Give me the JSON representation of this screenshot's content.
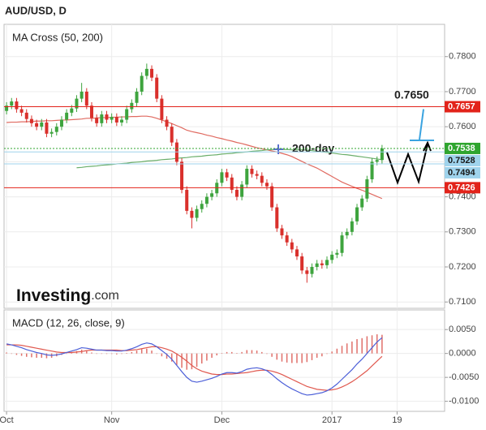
{
  "header": {
    "title": "AUD/USD, D"
  },
  "watermark": {
    "brand": "Investing",
    "domain": ".com"
  },
  "chart_data": [
    {
      "type": "candlestick",
      "title": "MA Cross (50, 200)",
      "up_color": "#3ea43e",
      "down_color": "#d9302c",
      "ylim": [
        0.7082,
        0.7892
      ],
      "yticks": [
        {
          "value": 0.71,
          "label": "0.7100"
        },
        {
          "value": 0.72,
          "label": "0.7200"
        },
        {
          "value": 0.73,
          "label": "0.7300"
        },
        {
          "value": 0.74,
          "label": "0.7400"
        },
        {
          "value": 0.75,
          "label": "0.7500"
        },
        {
          "value": 0.76,
          "label": "0.7600"
        },
        {
          "value": 0.77,
          "label": "0.7700"
        },
        {
          "value": 0.78,
          "label": "0.7800"
        }
      ],
      "grid": true,
      "open": [
        0.7645,
        0.766,
        0.7672,
        0.765,
        0.764,
        0.7622,
        0.761,
        0.76,
        0.7612,
        0.758,
        0.7585,
        0.76,
        0.762,
        0.764,
        0.7652,
        0.768,
        0.77,
        0.766,
        0.7625,
        0.761,
        0.7635,
        0.762,
        0.7628,
        0.7612,
        0.762,
        0.765,
        0.7668,
        0.77,
        0.7745,
        0.7765,
        0.774,
        0.768,
        0.762,
        0.76,
        0.7555,
        0.75,
        0.742,
        0.736,
        0.734,
        0.7365,
        0.738,
        0.74,
        0.741,
        0.744,
        0.747,
        0.7455,
        0.742,
        0.74,
        0.7435,
        0.748,
        0.7465,
        0.746,
        0.744,
        0.743,
        0.737,
        0.731,
        0.729,
        0.727,
        0.725,
        0.723,
        0.719,
        0.718,
        0.72,
        0.721,
        0.7205,
        0.722,
        0.7235,
        0.724,
        0.729,
        0.73,
        0.733,
        0.737,
        0.7395,
        0.745,
        0.75,
        0.7505,
        null,
        null,
        null,
        null,
        null,
        null,
        null,
        null,
        null,
        null,
        null,
        null
      ],
      "high": [
        0.767,
        0.7682,
        0.7682,
        0.766,
        0.765,
        0.7632,
        0.762,
        0.7622,
        0.7622,
        0.7595,
        0.761,
        0.763,
        0.765,
        0.7662,
        0.769,
        0.7725,
        0.771,
        0.767,
        0.7635,
        0.7645,
        0.7645,
        0.7638,
        0.7638,
        0.763,
        0.766,
        0.7678,
        0.771,
        0.7755,
        0.778,
        0.7775,
        0.775,
        0.769,
        0.763,
        0.761,
        0.7565,
        0.751,
        0.743,
        0.737,
        0.7375,
        0.739,
        0.741,
        0.742,
        0.745,
        0.748,
        0.748,
        0.7465,
        0.743,
        0.7445,
        0.749,
        0.749,
        0.7475,
        0.747,
        0.745,
        0.744,
        0.738,
        0.732,
        0.73,
        0.728,
        0.726,
        0.724,
        0.72,
        0.721,
        0.722,
        0.722,
        0.723,
        0.7245,
        0.725,
        0.73,
        0.731,
        0.734,
        0.738,
        0.7405,
        0.746,
        0.751,
        0.7515,
        0.7548,
        null,
        null,
        null,
        null,
        null,
        null,
        null,
        null,
        null,
        null,
        null,
        null
      ],
      "low": [
        0.7635,
        0.765,
        0.764,
        0.763,
        0.7612,
        0.76,
        0.759,
        0.759,
        0.757,
        0.757,
        0.7575,
        0.759,
        0.761,
        0.763,
        0.7642,
        0.767,
        0.765,
        0.7615,
        0.76,
        0.76,
        0.761,
        0.761,
        0.7602,
        0.7602,
        0.761,
        0.764,
        0.7658,
        0.769,
        0.7735,
        0.773,
        0.767,
        0.761,
        0.759,
        0.7545,
        0.749,
        0.741,
        0.735,
        0.731,
        0.733,
        0.7355,
        0.737,
        0.739,
        0.74,
        0.743,
        0.7445,
        0.741,
        0.739,
        0.739,
        0.7425,
        0.7455,
        0.745,
        0.743,
        0.742,
        0.736,
        0.73,
        0.728,
        0.726,
        0.724,
        0.722,
        0.718,
        0.7155,
        0.717,
        0.719,
        0.7195,
        0.7195,
        0.721,
        0.7225,
        0.723,
        0.728,
        0.729,
        0.732,
        0.736,
        0.7385,
        0.744,
        0.749,
        0.7495,
        null,
        null,
        null,
        null,
        null,
        null,
        null,
        null,
        null,
        null,
        null,
        null
      ],
      "close": [
        0.766,
        0.7672,
        0.765,
        0.764,
        0.7622,
        0.761,
        0.76,
        0.7612,
        0.758,
        0.7585,
        0.76,
        0.762,
        0.764,
        0.7652,
        0.768,
        0.77,
        0.766,
        0.7625,
        0.761,
        0.7635,
        0.762,
        0.7628,
        0.7612,
        0.762,
        0.765,
        0.7668,
        0.77,
        0.7745,
        0.7765,
        0.774,
        0.768,
        0.762,
        0.76,
        0.7555,
        0.75,
        0.742,
        0.736,
        0.734,
        0.7365,
        0.738,
        0.74,
        0.741,
        0.744,
        0.747,
        0.7455,
        0.742,
        0.74,
        0.7435,
        0.748,
        0.7465,
        0.746,
        0.744,
        0.743,
        0.737,
        0.731,
        0.729,
        0.727,
        0.725,
        0.723,
        0.719,
        0.718,
        0.72,
        0.721,
        0.7205,
        0.722,
        0.7235,
        0.724,
        0.729,
        0.73,
        0.733,
        0.737,
        0.7395,
        0.745,
        0.75,
        0.7505,
        0.7538,
        null,
        null,
        null,
        null,
        null,
        null,
        null,
        null,
        null,
        null,
        null,
        null
      ],
      "overlays": [
        {
          "color": "#e06a60",
          "values": [
            0.7612,
            0.7613,
            0.7613,
            0.7614,
            0.7614,
            0.7615,
            0.7616,
            0.7616,
            0.7617,
            0.7617,
            0.7618,
            0.7619,
            0.7619,
            0.762,
            0.7621,
            0.7622,
            0.7624,
            0.7624,
            0.7625,
            0.7626,
            0.7626,
            0.7627,
            0.7627,
            0.7628,
            0.7628,
            0.7629,
            0.7629,
            0.763,
            0.763,
            0.7628,
            0.7624,
            0.7619,
            0.7614,
            0.7609,
            0.7603,
            0.7597,
            0.759,
            0.7586,
            0.7583,
            0.758,
            0.7576,
            0.7573,
            0.7569,
            0.7566,
            0.7562,
            0.7559,
            0.7555,
            0.7552,
            0.7548,
            0.7544,
            0.754,
            0.7537,
            0.7534,
            0.7531,
            0.7528,
            0.7524,
            0.752,
            0.7515,
            0.7508,
            0.7501,
            0.7494,
            0.7488,
            0.7482,
            0.7474,
            0.7466,
            0.7458,
            0.745,
            0.7442,
            0.7436,
            0.743,
            0.7424,
            0.7419,
            0.7413,
            0.7407,
            0.7401,
            0.7395,
            null,
            null,
            null,
            null,
            null,
            null,
            null,
            null,
            null,
            null,
            null,
            null
          ]
        },
        {
          "color": "#6aae6a",
          "values": [
            null,
            null,
            null,
            null,
            null,
            null,
            null,
            null,
            null,
            null,
            null,
            null,
            null,
            null,
            0.7483,
            0.7484,
            0.7486,
            0.7487,
            0.7488,
            0.749,
            0.7491,
            0.7492,
            0.7494,
            0.7495,
            0.7496,
            0.7498,
            0.7499,
            0.75,
            0.7502,
            0.7503,
            0.7504,
            0.7506,
            0.7507,
            0.7508,
            0.751,
            0.7511,
            0.7512,
            0.7514,
            0.7515,
            0.7516,
            0.7518,
            0.7519,
            0.752,
            0.7522,
            0.7523,
            0.7524,
            0.7526,
            0.7527,
            0.7528,
            0.753,
            0.7531,
            0.7532,
            0.7534,
            0.7535,
            0.7535,
            0.7535,
            0.7535,
            0.7534,
            0.7534,
            0.7534,
            0.7533,
            0.7532,
            0.753,
            0.7528,
            0.7527,
            0.7525,
            0.7523,
            0.7521,
            0.752,
            0.7518,
            0.7516,
            0.7514,
            0.7512,
            0.751,
            0.7508,
            0.7506,
            null,
            null,
            null,
            null,
            null,
            null,
            null,
            null,
            null,
            null,
            null,
            null
          ]
        }
      ],
      "price_lines": [
        {
          "value": 0.7657,
          "color": "#e2231a",
          "text_color": "#ffffff",
          "style": "solid"
        },
        {
          "value": 0.7538,
          "color": "#2fa52f",
          "text_color": "#ffffff",
          "style": "dotted"
        },
        {
          "value": 0.7528,
          "color": "#9fd3ec",
          "text_color": "#1a1a1a",
          "style": "solid"
        },
        {
          "value": 0.7494,
          "color": "#9fd3ec",
          "text_color": "#1a1a1a",
          "style": "solid"
        },
        {
          "value": 0.7426,
          "color": "#e2231a",
          "text_color": "#ffffff",
          "style": "solid"
        }
      ],
      "target_level": {
        "value": 0.765,
        "label": "0.7650"
      },
      "ma200_note": "200-day"
    },
    {
      "type": "macd",
      "title": "MACD (12, 26, close, 9)",
      "categories": [
        "Oct",
        null,
        null,
        null,
        null,
        null,
        null,
        null,
        null,
        null,
        null,
        null,
        null,
        null,
        null,
        null,
        null,
        null,
        null,
        null,
        null,
        "Nov",
        null,
        null,
        null,
        null,
        null,
        null,
        null,
        null,
        null,
        null,
        null,
        null,
        null,
        null,
        null,
        null,
        null,
        null,
        null,
        null,
        null,
        "Dec",
        null,
        null,
        null,
        null,
        null,
        null,
        null,
        null,
        null,
        null,
        null,
        null,
        null,
        null,
        null,
        null,
        null,
        null,
        null,
        null,
        null,
        "2017",
        null,
        null,
        null,
        null,
        null,
        null,
        null,
        null,
        null,
        null,
        null,
        null,
        "19",
        null,
        null,
        null,
        null,
        null,
        null,
        null,
        null,
        null
      ],
      "ylim": [
        -0.0121,
        0.0091
      ],
      "yticks": [
        {
          "value": -0.01,
          "label": "-0.0100"
        },
        {
          "value": -0.005,
          "label": "-0.0050"
        },
        {
          "value": 0,
          "label": "0.0000"
        },
        {
          "value": 0.005,
          "label": "0.0050"
        }
      ],
      "grid": true,
      "macd": {
        "color": "#4c5fd8",
        "values": [
          0.002,
          0.0018,
          0.0015,
          0.0012,
          0.0008,
          0.0005,
          0.0002,
          0,
          -0.0003,
          -0.0004,
          -0.0003,
          -0.0001,
          0.0002,
          0.0005,
          0.0008,
          0.0012,
          0.0011,
          0.0009,
          0.0007,
          0.0007,
          0.0006,
          0.0006,
          0.0005,
          0.0005,
          0.0007,
          0.001,
          0.0014,
          0.0019,
          0.0022,
          0.002,
          0.0014,
          0.0006,
          -0.0002,
          -0.0012,
          -0.0025,
          -0.0038,
          -0.005,
          -0.0058,
          -0.006,
          -0.0058,
          -0.0055,
          -0.0052,
          -0.0048,
          -0.0043,
          -0.004,
          -0.004,
          -0.0041,
          -0.0038,
          -0.0033,
          -0.0031,
          -0.003,
          -0.0032,
          -0.0036,
          -0.0044,
          -0.0053,
          -0.0061,
          -0.0068,
          -0.0074,
          -0.0079,
          -0.0084,
          -0.0087,
          -0.0086,
          -0.0084,
          -0.0082,
          -0.0078,
          -0.0072,
          -0.0064,
          -0.0054,
          -0.0044,
          -0.0034,
          -0.0022,
          -0.0012,
          0,
          0.0012,
          0.0024,
          0.0033,
          null,
          null,
          null,
          null,
          null,
          null,
          null,
          null,
          null,
          null,
          null,
          null
        ]
      },
      "signal": {
        "color": "#e0584e",
        "values": [
          0.0018,
          0.0018,
          0.0018,
          0.0017,
          0.0015,
          0.0013,
          0.0011,
          0.0009,
          0.0007,
          0.0005,
          0.0003,
          0.0002,
          0.0002,
          0.0002,
          0.0003,
          0.0004,
          0.0006,
          0.0007,
          0.0007,
          0.0007,
          0.0007,
          0.0007,
          0.0007,
          0.0006,
          0.0006,
          0.0007,
          0.0008,
          0.001,
          0.0012,
          0.0014,
          0.0014,
          0.0012,
          0.0009,
          0.0005,
          -0.0001,
          -0.0008,
          -0.0016,
          -0.0025,
          -0.0032,
          -0.0037,
          -0.004,
          -0.0043,
          -0.0044,
          -0.0044,
          -0.0043,
          -0.0043,
          -0.0042,
          -0.0041,
          -0.004,
          -0.0038,
          -0.0036,
          -0.0035,
          -0.0035,
          -0.0037,
          -0.004,
          -0.0044,
          -0.0049,
          -0.0054,
          -0.0059,
          -0.0064,
          -0.0069,
          -0.0072,
          -0.0075,
          -0.0076,
          -0.0077,
          -0.0076,
          -0.0074,
          -0.007,
          -0.0065,
          -0.0059,
          -0.0052,
          -0.0044,
          -0.0036,
          -0.0026,
          -0.0016,
          -0.0006,
          null,
          null,
          null,
          null,
          null,
          null,
          null,
          null,
          null,
          null,
          null,
          null
        ]
      },
      "histogram": {
        "color": "#e0706a",
        "values": [
          0.0002,
          0,
          -0.0003,
          -0.0005,
          -0.0007,
          -0.0008,
          -0.0009,
          -0.0009,
          -0.001,
          -0.0009,
          -0.0006,
          -0.0003,
          0,
          0.0003,
          0.0005,
          0.0008,
          0.0005,
          0.0002,
          0,
          0,
          -0.0001,
          -0.0001,
          -0.0002,
          -0.0001,
          0.0001,
          0.0003,
          0.0006,
          0.0009,
          0.001,
          0.0006,
          0,
          -0.0006,
          -0.0011,
          -0.0017,
          -0.0024,
          -0.003,
          -0.0034,
          -0.0033,
          -0.0028,
          -0.0021,
          -0.0015,
          -0.0009,
          -0.0004,
          0.0001,
          0.0003,
          0.0003,
          0.0001,
          0.0003,
          0.0007,
          0.0007,
          0.0006,
          0.0003,
          -0.0001,
          -0.0007,
          -0.0013,
          -0.0017,
          -0.0019,
          -0.002,
          -0.002,
          -0.002,
          -0.0018,
          -0.0014,
          -0.0009,
          -0.0006,
          -0.0001,
          0.0004,
          0.001,
          0.0016,
          0.0021,
          0.0025,
          0.003,
          0.0032,
          0.0036,
          0.0038,
          0.004,
          0.0039,
          null,
          null,
          null,
          null,
          null,
          null,
          null,
          null,
          null,
          null,
          null,
          null
        ]
      }
    }
  ]
}
